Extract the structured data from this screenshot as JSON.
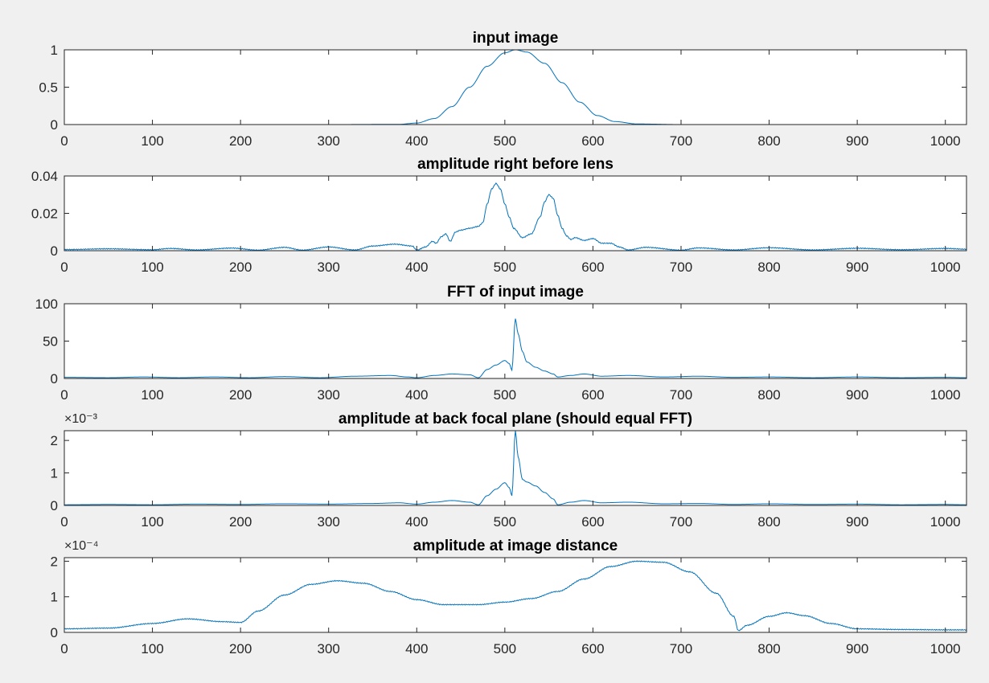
{
  "figure": {
    "background": "#f0f0f0",
    "axes_background": "#ffffff",
    "line_color": "#0072bd"
  },
  "chart_data": [
    {
      "type": "line",
      "title": "input image",
      "xlim": [
        0,
        1024
      ],
      "ylim": [
        0,
        1
      ],
      "xticks": [
        0,
        100,
        200,
        300,
        400,
        500,
        600,
        700,
        800,
        900,
        1000
      ],
      "xtick_labels": [
        "0",
        "100",
        "200",
        "300",
        "400",
        "500",
        "600",
        "700",
        "800",
        "900",
        "1000"
      ],
      "yticks": [
        0,
        0.5,
        1
      ],
      "ytick_labels": [
        "0",
        "0.5",
        "1"
      ],
      "exponent_label": null,
      "series": [
        {
          "name": "input image",
          "x": [
            0,
            300,
            380,
            400,
            420,
            440,
            460,
            480,
            500,
            512,
            525,
            545,
            565,
            585,
            605,
            625,
            650,
            700,
            1024
          ],
          "y": [
            0,
            0,
            0.003,
            0.02,
            0.08,
            0.24,
            0.5,
            0.78,
            0.96,
            1.0,
            0.97,
            0.82,
            0.56,
            0.3,
            0.12,
            0.04,
            0.008,
            0,
            0
          ]
        }
      ]
    },
    {
      "type": "line",
      "title": "amplitude right before lens",
      "xlim": [
        0,
        1024
      ],
      "ylim": [
        0,
        0.04
      ],
      "xticks": [
        0,
        100,
        200,
        300,
        400,
        500,
        600,
        700,
        800,
        900,
        1000
      ],
      "xtick_labels": [
        "0",
        "100",
        "200",
        "300",
        "400",
        "500",
        "600",
        "700",
        "800",
        "900",
        "1000"
      ],
      "yticks": [
        0,
        0.02,
        0.04
      ],
      "ytick_labels": [
        "0",
        "0.02",
        "0.04"
      ],
      "exponent_label": null,
      "series": [
        {
          "name": "amplitude right before lens",
          "x": [
            0,
            50,
            100,
            120,
            150,
            190,
            220,
            250,
            270,
            300,
            330,
            350,
            375,
            395,
            400,
            410,
            418,
            422,
            428,
            433,
            438,
            444,
            450,
            460,
            470,
            475,
            480,
            485,
            490,
            495,
            500,
            505,
            510,
            520,
            530,
            540,
            545,
            550,
            555,
            560,
            565,
            570,
            575,
            580,
            590,
            600,
            610,
            620,
            630,
            640,
            660,
            700,
            720,
            760,
            800,
            850,
            900,
            950,
            1000,
            1024
          ],
          "y": [
            0.0006,
            0.001,
            0.0005,
            0.0012,
            0.0004,
            0.0014,
            0.0003,
            0.0018,
            0.0003,
            0.002,
            0.0004,
            0.0025,
            0.0035,
            0.0025,
            0.0003,
            0.002,
            0.005,
            0.004,
            0.0075,
            0.009,
            0.005,
            0.01,
            0.011,
            0.012,
            0.013,
            0.015,
            0.025,
            0.033,
            0.036,
            0.033,
            0.025,
            0.018,
            0.012,
            0.007,
            0.009,
            0.018,
            0.026,
            0.03,
            0.028,
            0.019,
            0.012,
            0.008,
            0.006,
            0.007,
            0.0055,
            0.0065,
            0.004,
            0.004,
            0.002,
            0.0004,
            0.0018,
            0.0003,
            0.0015,
            0.0004,
            0.0016,
            0.0004,
            0.0013,
            0.0005,
            0.0012,
            0.0008
          ]
        }
      ]
    },
    {
      "type": "line",
      "title": "FFT of input image",
      "xlim": [
        0,
        1024
      ],
      "ylim": [
        0,
        100
      ],
      "xticks": [
        0,
        100,
        200,
        300,
        400,
        500,
        600,
        700,
        800,
        900,
        1000
      ],
      "xtick_labels": [
        "0",
        "100",
        "200",
        "300",
        "400",
        "500",
        "600",
        "700",
        "800",
        "900",
        "1000"
      ],
      "yticks": [
        0,
        50,
        100
      ],
      "ytick_labels": [
        "0",
        "50",
        "100"
      ],
      "exponent_label": null,
      "series": [
        {
          "name": "FFT of input image",
          "x": [
            0,
            50,
            90,
            130,
            170,
            210,
            250,
            290,
            330,
            370,
            390,
            400,
            420,
            440,
            460,
            470,
            480,
            490,
            500,
            505,
            508,
            512,
            515,
            520,
            525,
            535,
            545,
            555,
            560,
            575,
            590,
            610,
            640,
            680,
            720,
            760,
            800,
            850,
            900,
            950,
            1000,
            1024
          ],
          "y": [
            1.5,
            1,
            2,
            1,
            2,
            1,
            2.5,
            1,
            3,
            4,
            2,
            1,
            4,
            6,
            5,
            1,
            12,
            18,
            24,
            20,
            11,
            80,
            60,
            36,
            22,
            15,
            10,
            6,
            2,
            4,
            6,
            3,
            4,
            2,
            3,
            1.5,
            2,
            1,
            2,
            1,
            1.5,
            1
          ]
        }
      ]
    },
    {
      "type": "line",
      "title": "amplitude at back focal plane (should equal FFT)",
      "xlim": [
        0,
        1024
      ],
      "ylim": [
        0,
        2.3
      ],
      "xticks": [
        0,
        100,
        200,
        300,
        400,
        500,
        600,
        700,
        800,
        900,
        1000
      ],
      "xtick_labels": [
        "0",
        "100",
        "200",
        "300",
        "400",
        "500",
        "600",
        "700",
        "800",
        "900",
        "1000"
      ],
      "yticks": [
        0,
        1,
        2
      ],
      "ytick_labels": [
        "0",
        "1",
        "2"
      ],
      "exponent_label": "×10⁻³",
      "series": [
        {
          "name": "amplitude at back focal plane",
          "x": [
            0,
            50,
            100,
            150,
            200,
            250,
            300,
            350,
            380,
            400,
            420,
            440,
            460,
            470,
            480,
            490,
            500,
            505,
            508,
            512,
            515,
            520,
            525,
            535,
            545,
            555,
            560,
            575,
            590,
            610,
            640,
            680,
            720,
            760,
            800,
            850,
            900,
            950,
            1000,
            1024
          ],
          "y": [
            0.02,
            0.03,
            0.02,
            0.04,
            0.03,
            0.05,
            0.04,
            0.06,
            0.08,
            0.04,
            0.1,
            0.15,
            0.1,
            0.02,
            0.3,
            0.5,
            0.7,
            0.55,
            0.3,
            2.3,
            1.5,
            0.8,
            0.72,
            0.6,
            0.4,
            0.2,
            0.02,
            0.1,
            0.15,
            0.08,
            0.1,
            0.05,
            0.06,
            0.03,
            0.05,
            0.03,
            0.04,
            0.02,
            0.03,
            0.02
          ]
        }
      ]
    },
    {
      "type": "line",
      "title": "amplitude at image distance",
      "xlim": [
        0,
        1024
      ],
      "ylim": [
        0,
        2.1
      ],
      "xticks": [
        0,
        100,
        200,
        300,
        400,
        500,
        600,
        700,
        800,
        900,
        1000
      ],
      "xtick_labels": [
        "0",
        "100",
        "200",
        "300",
        "400",
        "500",
        "600",
        "700",
        "800",
        "900",
        "1000"
      ],
      "yticks": [
        0,
        1,
        2
      ],
      "ytick_labels": [
        "0",
        "1",
        "2"
      ],
      "exponent_label": "×10⁻⁴",
      "series": [
        {
          "name": "amplitude at image distance",
          "x": [
            0,
            50,
            100,
            140,
            180,
            200,
            220,
            250,
            280,
            310,
            340,
            370,
            400,
            430,
            470,
            500,
            530,
            560,
            590,
            620,
            650,
            680,
            710,
            740,
            760,
            765,
            775,
            800,
            820,
            840,
            870,
            900,
            950,
            1000,
            1024
          ],
          "y": [
            0.1,
            0.12,
            0.25,
            0.38,
            0.3,
            0.28,
            0.6,
            1.05,
            1.35,
            1.45,
            1.38,
            1.15,
            0.92,
            0.78,
            0.78,
            0.85,
            0.95,
            1.15,
            1.5,
            1.85,
            2.0,
            1.97,
            1.7,
            1.1,
            0.45,
            0.05,
            0.2,
            0.45,
            0.55,
            0.47,
            0.25,
            0.1,
            0.08,
            0.07,
            0.07
          ]
        }
      ]
    }
  ]
}
